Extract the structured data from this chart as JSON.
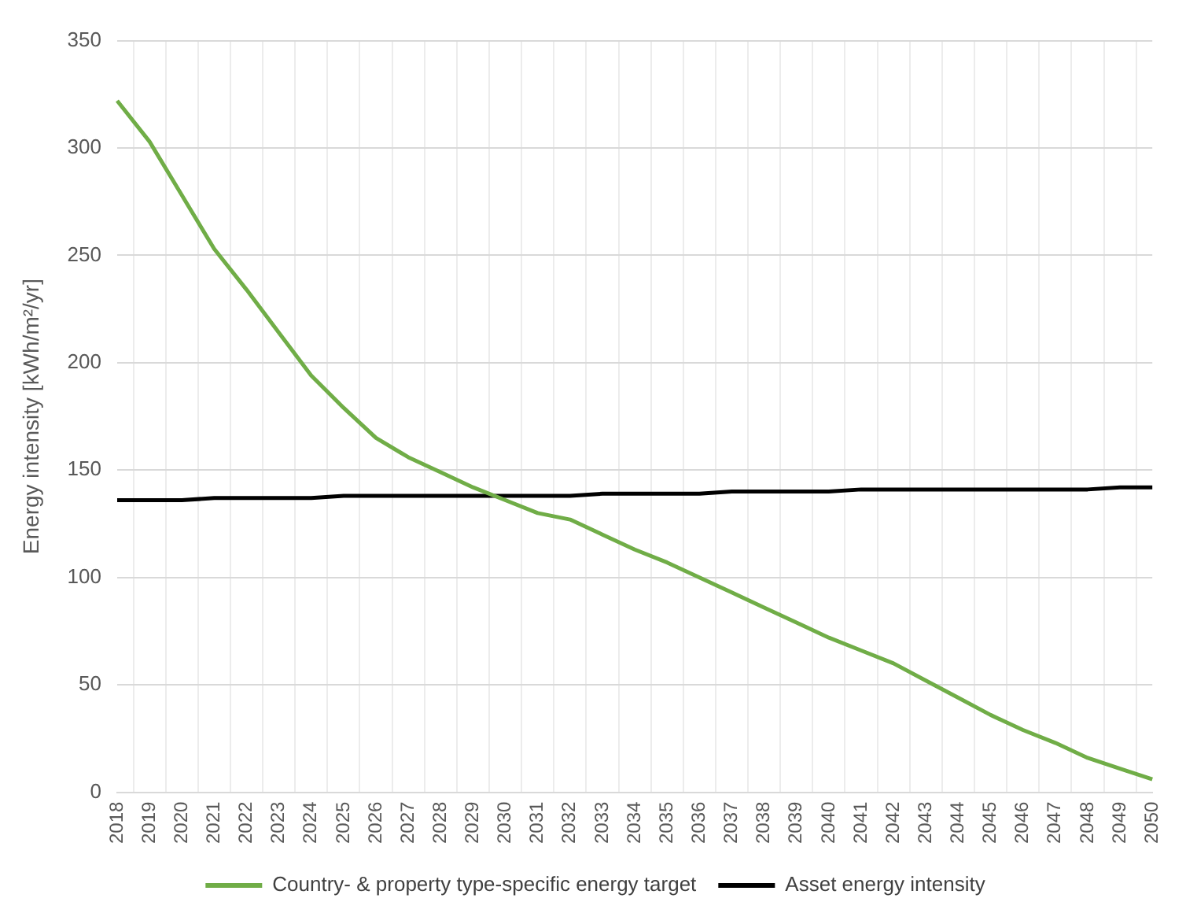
{
  "chart_data": {
    "type": "line",
    "ylabel": "Energy intensity [kWh/m²/yr]",
    "categories": [
      "2018",
      "2019",
      "2020",
      "2021",
      "2022",
      "2023",
      "2024",
      "2025",
      "2026",
      "2027",
      "2028",
      "2029",
      "2030",
      "2031",
      "2032",
      "2033",
      "2034",
      "2035",
      "2036",
      "2037",
      "2038",
      "2039",
      "2040",
      "2041",
      "2042",
      "2043",
      "2044",
      "2045",
      "2046",
      "2047",
      "2048",
      "2049",
      "2050"
    ],
    "series": [
      {
        "name": "Country- & property type-specific energy target",
        "color": "#70ad47",
        "values": [
          322,
          303,
          278,
          253,
          234,
          214,
          194,
          179,
          165,
          156,
          149,
          142,
          136,
          130,
          127,
          120,
          113,
          107,
          100,
          93,
          86,
          79,
          72,
          66,
          60,
          52,
          44,
          36,
          29,
          23,
          16,
          11,
          6
        ]
      },
      {
        "name": "Asset energy intensity",
        "color": "#000000",
        "values": [
          136,
          136,
          136,
          137,
          137,
          137,
          137,
          138,
          138,
          138,
          138,
          138,
          138,
          138,
          138,
          139,
          139,
          139,
          139,
          140,
          140,
          140,
          140,
          141,
          141,
          141,
          141,
          141,
          141,
          141,
          141,
          142,
          142
        ]
      }
    ],
    "ylim": [
      0,
      350
    ],
    "yticks": [
      0,
      50,
      100,
      150,
      200,
      250,
      300,
      350
    ],
    "grid": true,
    "legend": "bottom",
    "marker": "none",
    "line_style": "solid"
  }
}
